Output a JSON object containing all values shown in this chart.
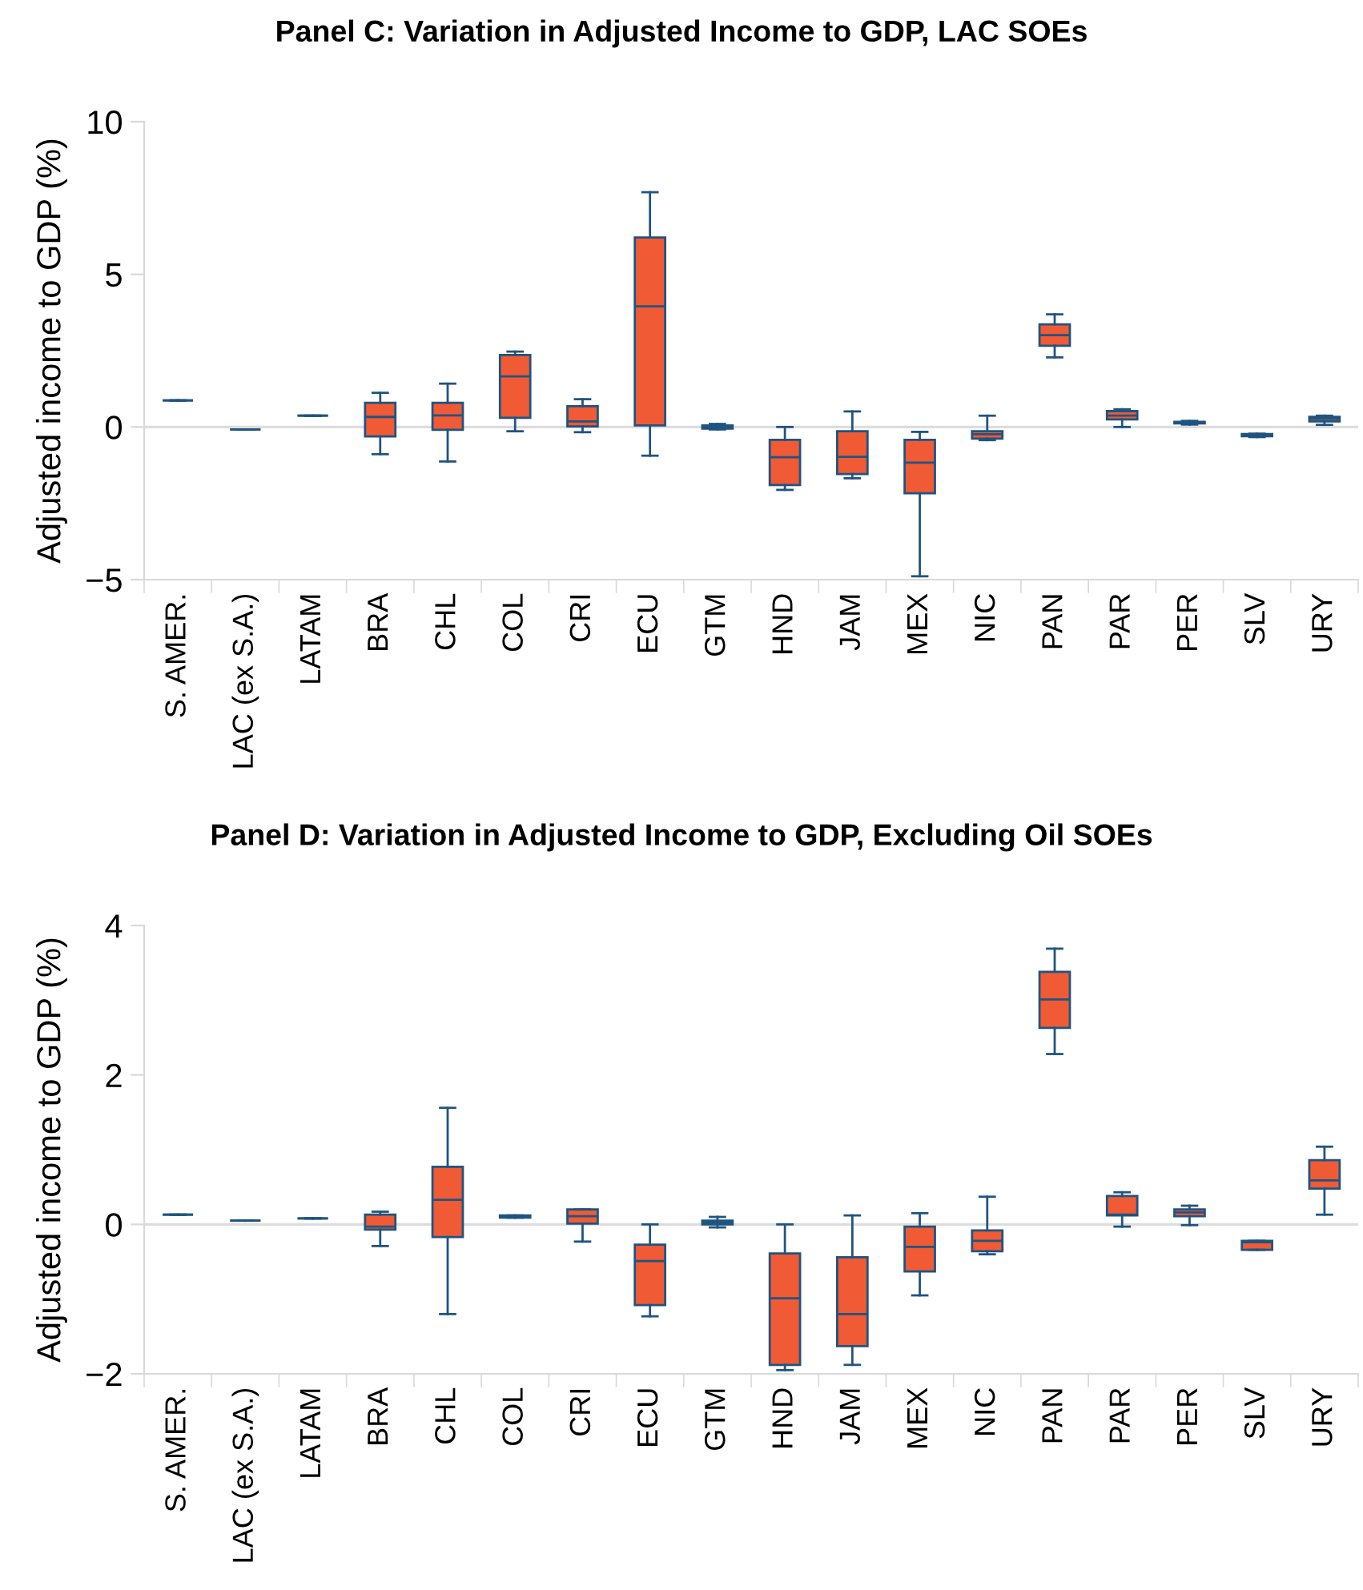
{
  "chart_data": [
    {
      "type": "box",
      "title": "Panel C: Variation in Adjusted Income to GDP, LAC SOEs",
      "ylabel": "Adjusted income to GDP (%)",
      "categories": [
        "S. AMER.",
        "LAC (ex S.A.)",
        "LATAM",
        "BRA",
        "CHL",
        "COL",
        "CRI",
        "ECU",
        "GTM",
        "HND",
        "JAM",
        "MEX",
        "NIC",
        "PAN",
        "PAR",
        "PER",
        "SLV",
        "URY"
      ],
      "colors": [
        "#1f5480",
        "#1f5480",
        "#1f5480",
        "#f05a35",
        "#f05a35",
        "#f05a35",
        "#f05a35",
        "#f05a35",
        "#f05a35",
        "#f05a35",
        "#f05a35",
        "#f05a35",
        "#f05a35",
        "#f05a35",
        "#f05a35",
        "#f05a35",
        "#f05a35",
        "#f05a35"
      ],
      "boxes": [
        {
          "low": 0.87,
          "q1": 0.87,
          "median": 0.87,
          "q3": 0.87,
          "high": 0.87
        },
        {
          "low": -0.08,
          "q1": -0.08,
          "median": -0.08,
          "q3": -0.08,
          "high": -0.08
        },
        {
          "low": 0.37,
          "q1": 0.37,
          "median": 0.37,
          "q3": 0.37,
          "high": 0.37
        },
        {
          "low": -0.89,
          "q1": -0.31,
          "median": 0.33,
          "q3": 0.79,
          "high": 1.12
        },
        {
          "low": -1.13,
          "q1": -0.09,
          "median": 0.38,
          "q3": 0.79,
          "high": 1.42
        },
        {
          "low": -0.14,
          "q1": 0.3,
          "median": 1.66,
          "q3": 2.36,
          "high": 2.47
        },
        {
          "low": -0.17,
          "q1": 0.02,
          "median": 0.18,
          "q3": 0.68,
          "high": 0.91
        },
        {
          "low": -0.94,
          "q1": 0.05,
          "median": 3.95,
          "q3": 6.21,
          "high": 7.69
        },
        {
          "low": -0.08,
          "q1": -0.05,
          "median": 0.0,
          "q3": 0.05,
          "high": 0.1
        },
        {
          "low": -2.06,
          "q1": -1.9,
          "median": -0.99,
          "q3": -0.42,
          "high": 0.0
        },
        {
          "low": -1.68,
          "q1": -1.54,
          "median": -0.98,
          "q3": -0.14,
          "high": 0.51
        },
        {
          "low": -4.89,
          "q1": -2.17,
          "median": -1.17,
          "q3": -0.42,
          "high": -0.16
        },
        {
          "low": -0.43,
          "q1": -0.38,
          "median": -0.24,
          "q3": -0.14,
          "high": 0.37
        },
        {
          "low": 2.28,
          "q1": 2.66,
          "median": 3.01,
          "q3": 3.36,
          "high": 3.69
        },
        {
          "low": 0.0,
          "q1": 0.25,
          "median": 0.37,
          "q3": 0.52,
          "high": 0.58
        },
        {
          "low": 0.08,
          "q1": 0.12,
          "median": 0.15,
          "q3": 0.17,
          "high": 0.2
        },
        {
          "low": -0.33,
          "q1": -0.3,
          "median": -0.27,
          "q3": -0.23,
          "high": -0.22
        },
        {
          "low": 0.07,
          "q1": 0.18,
          "median": 0.27,
          "q3": 0.33,
          "high": 0.37
        }
      ],
      "ylim": [
        -5,
        10
      ],
      "yticks": [
        {
          "value": -5,
          "label": "−5"
        },
        0,
        5,
        10
      ],
      "ref_lines": [
        {
          "axis": "y",
          "value": 0,
          "label": null,
          "color": "#dddddd"
        }
      ],
      "grid": false,
      "legend": false
    },
    {
      "type": "box",
      "title": "Panel D: Variation in Adjusted Income to GDP, Excluding Oil SOEs",
      "ylabel": "Adjusted income to GDP (%)",
      "categories": [
        "S. AMER.",
        "LAC (ex S.A.)",
        "LATAM",
        "BRA",
        "CHL",
        "COL",
        "CRI",
        "ECU",
        "GTM",
        "HND",
        "JAM",
        "MEX",
        "NIC",
        "PAN",
        "PAR",
        "PER",
        "SLV",
        "URY"
      ],
      "colors": [
        "#1f5480",
        "#1f5480",
        "#1f5480",
        "#f05a35",
        "#f05a35",
        "#f05a35",
        "#f05a35",
        "#f05a35",
        "#f05a35",
        "#f05a35",
        "#f05a35",
        "#f05a35",
        "#f05a35",
        "#f05a35",
        "#f05a35",
        "#f05a35",
        "#f05a35",
        "#f05a35"
      ],
      "boxes": [
        {
          "low": 0.13,
          "q1": 0.13,
          "median": 0.13,
          "q3": 0.13,
          "high": 0.13
        },
        {
          "low": 0.05,
          "q1": 0.05,
          "median": 0.05,
          "q3": 0.05,
          "high": 0.05
        },
        {
          "low": 0.08,
          "q1": 0.08,
          "median": 0.08,
          "q3": 0.08,
          "high": 0.08
        },
        {
          "low": -0.29,
          "q1": -0.07,
          "median": -0.03,
          "q3": 0.13,
          "high": 0.17
        },
        {
          "low": -1.2,
          "q1": -0.17,
          "median": 0.33,
          "q3": 0.77,
          "high": 1.56
        },
        {
          "low": 0.09,
          "q1": 0.09,
          "median": 0.1,
          "q3": 0.12,
          "high": 0.12
        },
        {
          "low": -0.23,
          "q1": 0.01,
          "median": 0.11,
          "q3": 0.2,
          "high": 0.2
        },
        {
          "low": -1.23,
          "q1": -1.08,
          "median": -0.49,
          "q3": -0.27,
          "high": 0.0
        },
        {
          "low": -0.04,
          "q1": 0.0,
          "median": 0.03,
          "q3": 0.05,
          "high": 0.1
        },
        {
          "low": -1.95,
          "q1": -1.88,
          "median": -0.99,
          "q3": -0.39,
          "high": 0.0
        },
        {
          "low": -1.88,
          "q1": -1.63,
          "median": -1.2,
          "q3": -0.44,
          "high": 0.12
        },
        {
          "low": -0.95,
          "q1": -0.63,
          "median": -0.3,
          "q3": -0.03,
          "high": 0.15
        },
        {
          "low": -0.4,
          "q1": -0.36,
          "median": -0.22,
          "q3": -0.08,
          "high": 0.37
        },
        {
          "low": 2.28,
          "q1": 2.63,
          "median": 3.01,
          "q3": 3.38,
          "high": 3.69
        },
        {
          "low": -0.03,
          "q1": 0.12,
          "median": 0.13,
          "q3": 0.38,
          "high": 0.43
        },
        {
          "low": -0.01,
          "q1": 0.11,
          "median": 0.16,
          "q3": 0.2,
          "high": 0.25
        },
        {
          "low": -0.34,
          "q1": -0.34,
          "median": -0.24,
          "q3": -0.22,
          "high": -0.22
        },
        {
          "low": 0.13,
          "q1": 0.48,
          "median": 0.59,
          "q3": 0.86,
          "high": 1.04
        }
      ],
      "ylim": [
        -2,
        4
      ],
      "yticks": [
        {
          "value": -2,
          "label": "−2"
        },
        0,
        2,
        4
      ],
      "ref_lines": [
        {
          "axis": "y",
          "value": 0,
          "label": null,
          "color": "#dddddd"
        }
      ],
      "grid": false,
      "legend": false
    }
  ]
}
